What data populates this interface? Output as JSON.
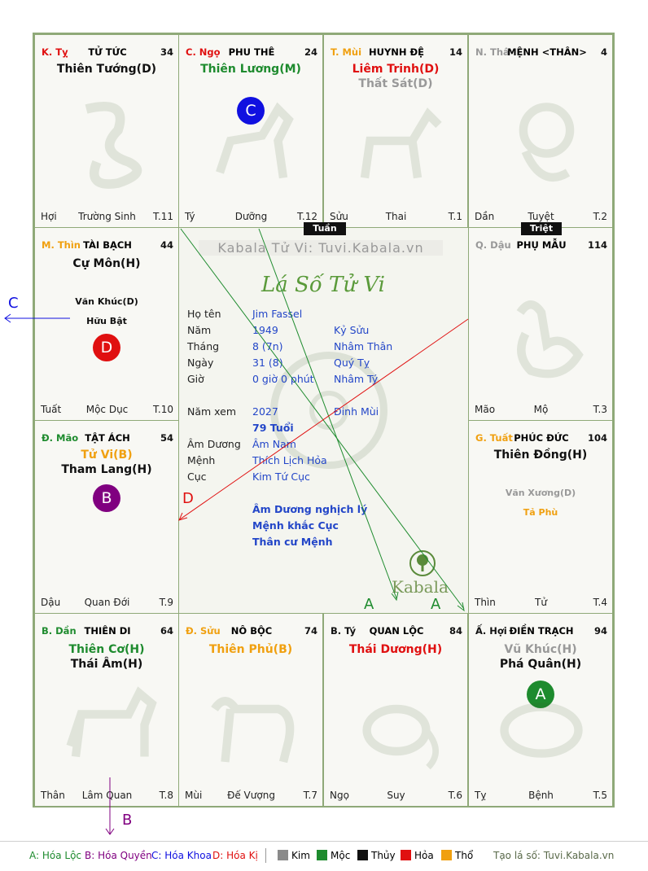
{
  "colors": {
    "kim": "#8a8a8a",
    "moc": "#1e8b2e",
    "thuy": "#111111",
    "hoa": "#e01010",
    "tho": "#f0a010",
    "blue": "#2346c8",
    "purple": "#800080"
  },
  "cells": {
    "ty": {
      "branch": "K. Tỵ",
      "house": "TỬ TỨC",
      "num": "34",
      "star1": "Thiên Tướng(D)",
      "foot_l": "Hợi",
      "foot_c": "Trường Sinh",
      "foot_r": "T.11"
    },
    "ngo": {
      "branch": "C. Ngọ",
      "house": "PHU THÊ",
      "num": "24",
      "star1": "Thiên Lương(M)",
      "badge": "C",
      "foot_l": "Tý",
      "foot_c": "Dưỡng",
      "foot_r": "T.12"
    },
    "mui": {
      "branch": "T. Mùi",
      "house": "HUYNH ĐỆ",
      "num": "14",
      "star1": "Liêm Trinh(D)",
      "star2": "Thất Sát(D)",
      "foot_l": "Sửu",
      "foot_c": "Thai",
      "foot_r": "T.1"
    },
    "than": {
      "branch": "N. Thân",
      "house": "MỆNH <THÂN>",
      "num": "4",
      "foot_l": "Dần",
      "foot_c": "Tuyệt",
      "foot_r": "T.2"
    },
    "thin": {
      "branch": "M. Thìn",
      "house": "TÀI BẠCH",
      "num": "44",
      "star1": "Cự Môn(H)",
      "minor1": "Văn Khúc(D)",
      "minor2": "Hữu Bật",
      "badge": "D",
      "foot_l": "Tuất",
      "foot_c": "Mộc Dục",
      "foot_r": "T.10"
    },
    "dau": {
      "branch": "Q. Dậu",
      "house": "PHỤ MẪU",
      "num": "114",
      "foot_l": "Mão",
      "foot_c": "Mộ",
      "foot_r": "T.3"
    },
    "mao": {
      "branch": "Đ. Mão",
      "house": "TẬT ÁCH",
      "num": "54",
      "star1": "Tử Vi(B)",
      "star2": "Tham Lang(H)",
      "badge": "B",
      "foot_l": "Dậu",
      "foot_c": "Quan Đới",
      "foot_r": "T.9"
    },
    "tuat": {
      "branch": "G. Tuất",
      "house": "PHÚC ĐỨC",
      "num": "104",
      "star1": "Thiên Đồng(H)",
      "minor1": "Văn Xương(D)",
      "minor2": "Tả Phù",
      "foot_l": "Thìn",
      "foot_c": "Tử",
      "foot_r": "T.4"
    },
    "dan": {
      "branch": "B. Dần",
      "house": "THIÊN DI",
      "num": "64",
      "star1": "Thiên Cơ(H)",
      "star2": "Thái Âm(H)",
      "foot_l": "Thân",
      "foot_c": "Lâm Quan",
      "foot_r": "T.8"
    },
    "suu": {
      "branch": "Đ. Sửu",
      "house": "NÔ BỘC",
      "num": "74",
      "star1": "Thiên Phủ(B)",
      "foot_l": "Mùi",
      "foot_c": "Đế Vượng",
      "foot_r": "T.7"
    },
    "ti": {
      "branch": "B. Tý",
      "house": "QUAN LỘC",
      "num": "84",
      "star1": "Thái Dương(H)",
      "foot_l": "Ngọ",
      "foot_c": "Suy",
      "foot_r": "T.6"
    },
    "hoi": {
      "branch": "Ấ. Hợi",
      "house": "ĐIỀN TRẠCH",
      "num": "94",
      "star1": "Vũ Khúc(H)",
      "star2": "Phá Quân(H)",
      "badge": "A",
      "foot_l": "Tỵ",
      "foot_c": "Bệnh",
      "foot_r": "T.5"
    }
  },
  "tags": {
    "tuan": "Tuần",
    "triet": "Triệt"
  },
  "center": {
    "watermark": "Kabala Tử Vi: Tuvi.Kabala.vn",
    "title": "Lá Số Tử Vi",
    "rows": [
      {
        "label": "Họ tên",
        "v1": "Jim Fassel",
        "v2": ""
      },
      {
        "label": "Năm",
        "v1": "1949",
        "v2": "Kỷ Sửu"
      },
      {
        "label": "Tháng",
        "v1": "8  (7n)",
        "v2": "Nhâm Thân"
      },
      {
        "label": "Ngày",
        "v1": "31  (8)",
        "v2": "Quý Tỵ"
      },
      {
        "label": "Giờ",
        "v1": "0 giờ 0 phút",
        "v2": "Nhâm Tý"
      }
    ],
    "namxem_label": "Năm xem",
    "namxem_v1": "2027",
    "namxem_v2": "Đinh Mùi",
    "tuoi": "79 Tuổi",
    "rows2": [
      {
        "label": "Âm Dương",
        "v1": "Âm Nam"
      },
      {
        "label": "Mệnh",
        "v1": "Thích Lịch Hỏa"
      },
      {
        "label": "Cục",
        "v1": "Kim Tứ Cục"
      }
    ],
    "notes": [
      "Âm Dương nghịch lý",
      "Mệnh khắc Cục",
      "Thân cư Mệnh"
    ],
    "logo_text": "Kabala"
  },
  "arrow_labels": {
    "a1": "A",
    "a2": "A",
    "b": "B",
    "c": "C",
    "d": "D"
  },
  "legend": {
    "hoa_loc": "A: Hóa Lộc",
    "hoa_quyen": "B: Hóa Quyền",
    "hoa_khoa": "C: Hóa Khoa",
    "hoa_ki": "D: Hóa Kị",
    "kim": "Kim",
    "moc": "Mộc",
    "thuy": "Thủy",
    "hoa": "Hỏa",
    "tho": "Thổ",
    "site": "Tạo lá số: Tuvi.Kabala.vn"
  }
}
